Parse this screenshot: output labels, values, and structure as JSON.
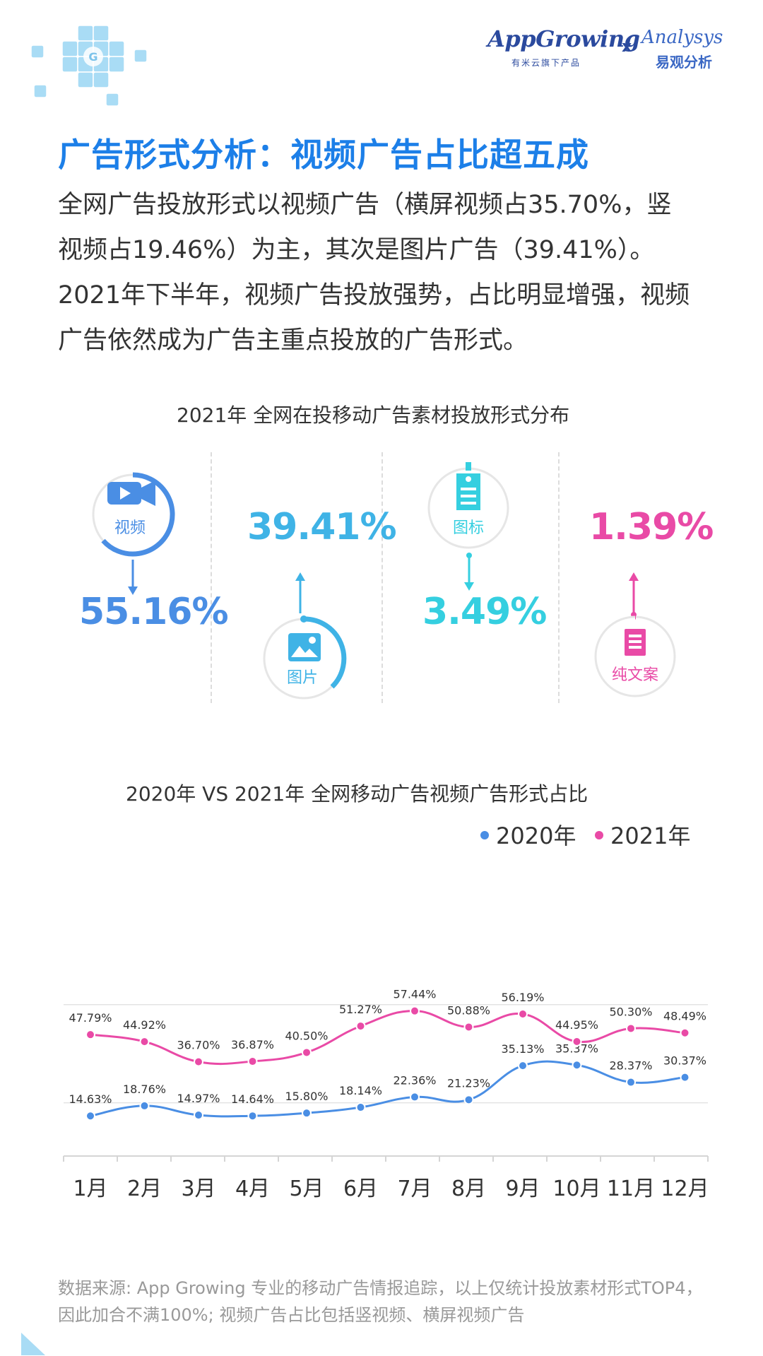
{
  "brand": {
    "appgrowing": "AppGrowing",
    "appgrowing_sub": "有米云旗下产品",
    "x": "x",
    "analysys": "Analysys",
    "analysys_sub": "易观分析"
  },
  "headline": "广告形式分析：视频广告占比超五成",
  "paragraph": [
    "全网广告投放形式以视频广告（横屏视频占35.70%，竖",
    "视频占19.46%）为主，其次是图片广告（39.41%）。",
    "2021年下半年，视频广告投放强势，占比明显增强，视频",
    "广告依然成为广告主重点投放的广告形式。"
  ],
  "section1": {
    "title": "2021年 全网在投移动广告素材投放形式分布",
    "items": [
      {
        "label": "视频",
        "value": "55.16%",
        "icon": "video-camera-icon",
        "color": "#4a8ee4"
      },
      {
        "label": "图片",
        "value": "39.41%",
        "icon": "image-icon",
        "color": "#3fb3e6"
      },
      {
        "label": "图标",
        "value": "3.49%",
        "icon": "icon-tag-icon",
        "color": "#35cfe0"
      },
      {
        "label": "纯文案",
        "value": "1.39%",
        "icon": "document-icon",
        "color": "#e94aa6"
      }
    ]
  },
  "section2": {
    "title": "2020年 VS 2021年 全网移动广告视频广告形式占比",
    "legend": [
      {
        "name": "2020年",
        "color": "#4a8ee4"
      },
      {
        "name": "2021年",
        "color": "#e94aa6"
      }
    ]
  },
  "chart_data": {
    "type": "line",
    "title": "2020年 VS 2021年 全网移动广告视频广告形式占比",
    "categories": [
      "1月",
      "2月",
      "3月",
      "4月",
      "5月",
      "6月",
      "7月",
      "8月",
      "9月",
      "10月",
      "11月",
      "12月"
    ],
    "series": [
      {
        "name": "2020年",
        "color": "#4a8ee4",
        "values": [
          14.63,
          18.76,
          14.97,
          14.64,
          15.8,
          18.14,
          22.36,
          21.23,
          35.13,
          35.37,
          28.37,
          30.37
        ]
      },
      {
        "name": "2021年",
        "color": "#e94aa6",
        "values": [
          47.79,
          44.92,
          36.7,
          36.87,
          40.5,
          51.27,
          57.44,
          50.88,
          56.19,
          44.95,
          50.3,
          48.49
        ]
      }
    ],
    "grid": true,
    "legend_position": "top-right"
  },
  "footnote": [
    "数据来源: App Growing 专业的移动广告情报追踪，以上仅统计投放素材形式TOP4，",
    "因此加合不满100%; 视频广告占比包括竖视频、横屏视频广告"
  ]
}
